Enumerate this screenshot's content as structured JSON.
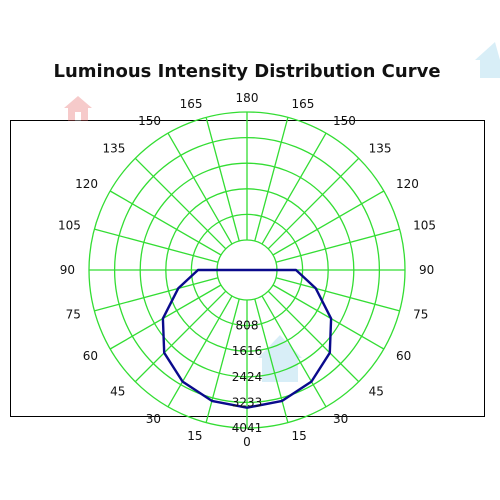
{
  "chart_data": {
    "type": "polar",
    "title": "Luminous Intensity Distribution Curve",
    "angle_unit": "degrees",
    "angle_labels_left": [
      180,
      165,
      150,
      135,
      120,
      105,
      90,
      75,
      60,
      45,
      30,
      15,
      0
    ],
    "angle_labels_right": [
      165,
      150,
      135,
      120,
      105,
      90,
      75,
      60,
      45,
      30,
      15
    ],
    "angle_step": 15,
    "radial_labels": [
      "808",
      "1616",
      "2424",
      "3233",
      "4041"
    ],
    "radial_max": 4041,
    "grid": true,
    "colors": {
      "grid": "#33dd33",
      "curve": "#0a0a8c",
      "frame": "#000000",
      "title": "#111111"
    },
    "series": [
      {
        "angles": [
          0,
          15,
          30,
          45,
          60,
          75,
          90
        ],
        "values": [
          3400,
          3330,
          3120,
          2750,
          2120,
          1300,
          600
        ]
      }
    ]
  },
  "watermark_icons": [
    "house-icon",
    "house-icon",
    "house-icon"
  ]
}
